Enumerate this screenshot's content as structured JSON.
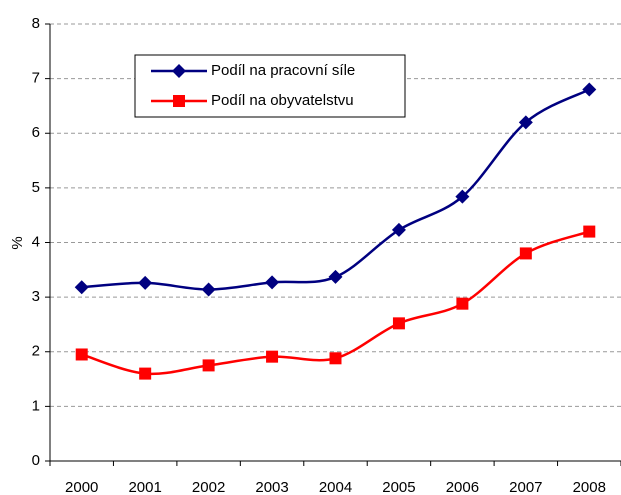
{
  "chart_data": {
    "type": "line",
    "categories": [
      "2000",
      "2001",
      "2002",
      "2003",
      "2004",
      "2005",
      "2006",
      "2007",
      "2008"
    ],
    "ylabel": "%",
    "series": [
      {
        "name": "Podíl na pracovní síle",
        "color": "#000080",
        "marker": "diamond",
        "values": [
          3.18,
          3.26,
          3.14,
          3.27,
          3.37,
          4.23,
          4.84,
          6.2,
          6.8
        ]
      },
      {
        "name": "Podíl na obyvatelstvu",
        "color": "#ff0000",
        "marker": "square",
        "values": [
          1.95,
          1.6,
          1.75,
          1.91,
          1.88,
          2.52,
          2.88,
          3.8,
          4.2
        ]
      }
    ],
    "ylim": [
      0,
      8
    ],
    "yticks": [
      0,
      1,
      2,
      3,
      4,
      5,
      6,
      7,
      8
    ],
    "grid": true,
    "legend": "upper left"
  }
}
